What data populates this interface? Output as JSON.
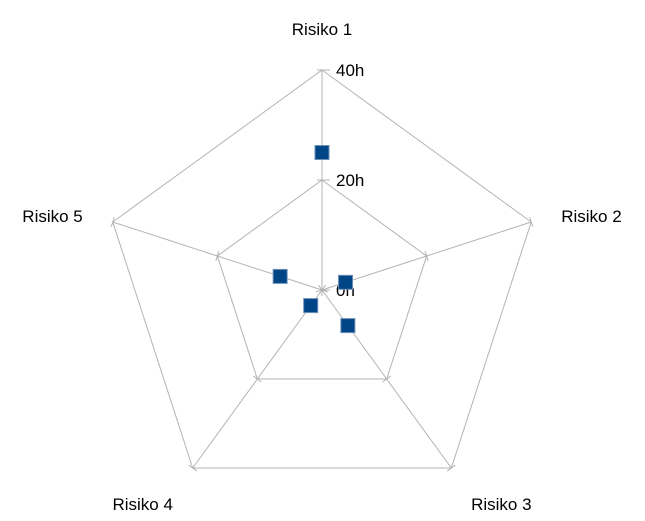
{
  "chart_data": {
    "type": "radar",
    "categories": [
      "Risiko 1",
      "Risiko 2",
      "Risiko 3",
      "Risiko 4",
      "Risiko 5"
    ],
    "series": [
      {
        "values": [
          25,
          4.5,
          8,
          3.5,
          8
        ],
        "color": "#004586",
        "marker": "square"
      }
    ],
    "rlim": [
      0,
      40
    ],
    "tick_values": [
      0,
      20,
      40
    ],
    "tick_labels": [
      "0h",
      "20h",
      "40h"
    ],
    "grid": true,
    "legend": "none"
  }
}
